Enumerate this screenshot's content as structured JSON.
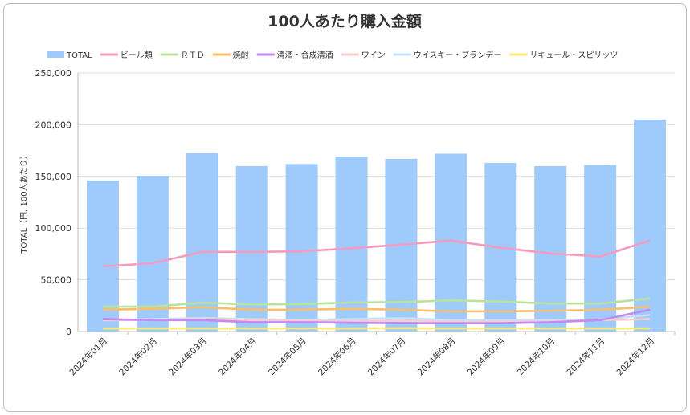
{
  "chart_data": {
    "type": "bar",
    "title": "100人あたり購入金額",
    "ylabel": "TOTAL（円, 100人あたり）",
    "xlabel": "",
    "ylim": [
      0,
      250000
    ],
    "yticks": [
      "0",
      "50,000",
      "100,000",
      "150,000",
      "200,000",
      "250,000"
    ],
    "ytick_values": [
      0,
      50000,
      100000,
      150000,
      200000,
      250000
    ],
    "legend_position": "top",
    "categories": [
      "2024年01月",
      "2024年02月",
      "2024年03月",
      "2024年04月",
      "2024年05月",
      "2024年06月",
      "2024年07月",
      "2024年08月",
      "2024年09月",
      "2024年10月",
      "2024年11月",
      "2024年12月"
    ],
    "bar_series": {
      "name": "TOTAL",
      "color": "#9ecbfb",
      "values": [
        146000,
        150500,
        172500,
        160000,
        162000,
        169000,
        167000,
        172000,
        163000,
        160000,
        161000,
        205000
      ]
    },
    "line_series": [
      {
        "name": "ビール類",
        "color": "#f79ac0",
        "values": [
          63000,
          66000,
          77000,
          77000,
          77500,
          80500,
          84000,
          88000,
          81000,
          75500,
          72500,
          88000
        ]
      },
      {
        "name": "ＲＴＤ",
        "color": "#b9e39a",
        "values": [
          24000,
          24000,
          28000,
          26000,
          26500,
          28000,
          28500,
          30000,
          29000,
          27000,
          27000,
          32000
        ]
      },
      {
        "name": "焼酎",
        "color": "#fbbd66",
        "values": [
          21000,
          22000,
          23500,
          21000,
          21000,
          22000,
          21000,
          19500,
          19500,
          20000,
          21000,
          24000
        ]
      },
      {
        "name": "清酒・合成清酒",
        "color": "#c28af5",
        "values": [
          12000,
          11000,
          11000,
          9000,
          9000,
          8500,
          8000,
          8000,
          8000,
          9000,
          11000,
          21000
        ]
      },
      {
        "name": "ワイン",
        "color": "#f8cccc",
        "values": [
          11000,
          11000,
          12000,
          11000,
          10500,
          10000,
          10500,
          9500,
          9500,
          10000,
          11000,
          12000
        ]
      },
      {
        "name": "ウイスキー・ブランデー",
        "color": "#c6e0fb",
        "values": [
          11000,
          12000,
          13000,
          12000,
          11000,
          12000,
          13000,
          11000,
          11000,
          11000,
          11500,
          16000
        ]
      },
      {
        "name": "リキュール・スピリッツ",
        "color": "#faea73",
        "values": [
          3000,
          3000,
          3000,
          3000,
          3000,
          3000,
          3200,
          3000,
          3000,
          3000,
          3000,
          3000
        ]
      }
    ]
  }
}
